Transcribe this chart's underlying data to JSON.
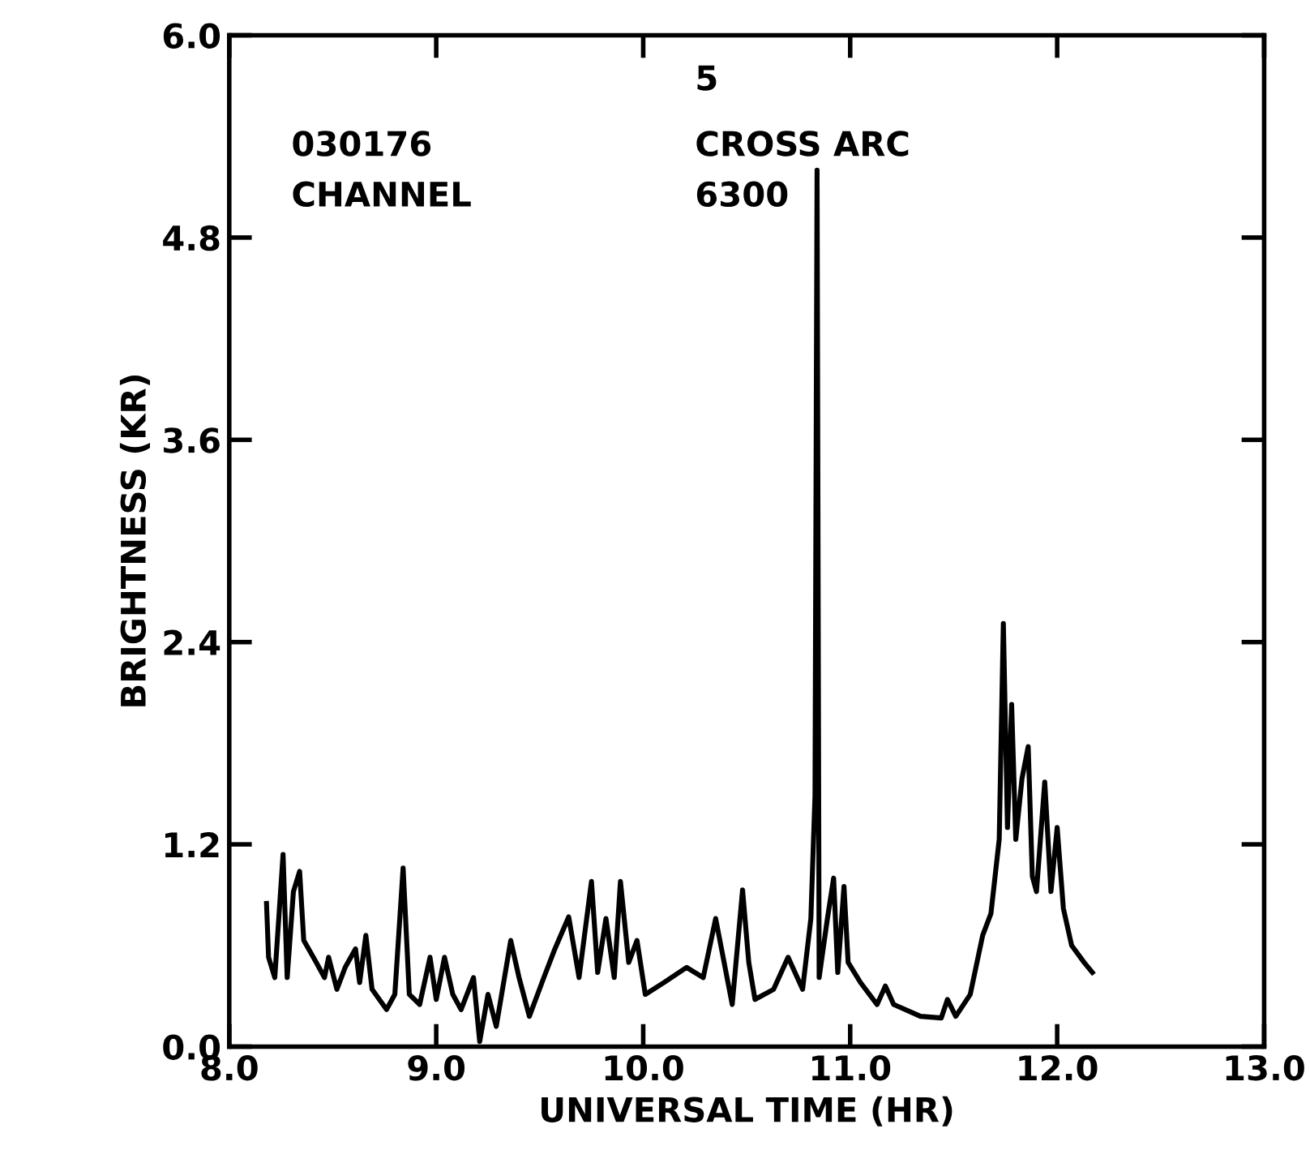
{
  "chart_data": {
    "type": "line",
    "xlabel": "UNIVERSAL TIME (HR)",
    "ylabel": "BRIGHTNESS (KR)",
    "annotations": [
      "5",
      "030176",
      "CROSS ARC",
      "CHANNEL",
      "6300"
    ],
    "xlim": [
      8,
      13
    ],
    "ylim": [
      0,
      6
    ],
    "xticks": [
      {
        "value": 8,
        "label": "8.0"
      },
      {
        "value": 9,
        "label": "9.0"
      },
      {
        "value": 10,
        "label": "10.0"
      },
      {
        "value": 11,
        "label": "11.0"
      },
      {
        "value": 12,
        "label": "12.0"
      },
      {
        "value": 13,
        "label": "13.0"
      }
    ],
    "yticks": [
      {
        "value": 0,
        "label": "0.0"
      },
      {
        "value": 1.2,
        "label": "1.2"
      },
      {
        "value": 2.4,
        "label": "2.4"
      },
      {
        "value": 3.6,
        "label": "3.6"
      },
      {
        "value": 4.8,
        "label": "4.8"
      },
      {
        "value": 6,
        "label": "6.0"
      }
    ],
    "grid": false,
    "legend": false,
    "marker": "none",
    "line_style": "solid",
    "series": [
      {
        "color": "#000000",
        "x": [
          8.18,
          8.19,
          8.22,
          8.26,
          8.28,
          8.31,
          8.34,
          8.36,
          8.42,
          8.46,
          8.48,
          8.52,
          8.56,
          8.61,
          8.63,
          8.66,
          8.69,
          8.76,
          8.8,
          8.84,
          8.87,
          8.92,
          8.97,
          9.0,
          9.04,
          9.08,
          9.12,
          9.18,
          9.21,
          9.25,
          9.29,
          9.36,
          9.4,
          9.45,
          9.52,
          9.57,
          9.64,
          9.69,
          9.75,
          9.78,
          9.82,
          9.86,
          9.89,
          9.93,
          9.97,
          10.01,
          10.1,
          10.21,
          10.29,
          10.35,
          10.43,
          10.48,
          10.51,
          10.54,
          10.63,
          10.7,
          10.77,
          10.81,
          10.83,
          10.84,
          10.85,
          10.89,
          10.92,
          10.94,
          10.97,
          10.99,
          11.05,
          11.13,
          11.17,
          11.21,
          11.34,
          11.44,
          11.47,
          11.51,
          11.58,
          11.64,
          11.68,
          11.72,
          11.74,
          11.76,
          11.78,
          11.8,
          11.83,
          11.86,
          11.88,
          11.9,
          11.94,
          11.97,
          12.0,
          12.03,
          12.07,
          12.13,
          12.17
        ],
        "values": [
          0.85,
          0.53,
          0.41,
          1.14,
          0.41,
          0.92,
          1.04,
          0.63,
          0.5,
          0.41,
          0.53,
          0.34,
          0.47,
          0.58,
          0.38,
          0.66,
          0.34,
          0.22,
          0.31,
          1.06,
          0.31,
          0.25,
          0.53,
          0.28,
          0.53,
          0.31,
          0.22,
          0.41,
          0.03,
          0.31,
          0.12,
          0.63,
          0.41,
          0.18,
          0.41,
          0.57,
          0.77,
          0.41,
          0.98,
          0.44,
          0.76,
          0.41,
          0.98,
          0.5,
          0.63,
          0.31,
          0.38,
          0.47,
          0.41,
          0.76,
          0.25,
          0.93,
          0.5,
          0.28,
          0.34,
          0.53,
          0.34,
          0.76,
          1.49,
          5.2,
          0.41,
          0.76,
          1.0,
          0.44,
          0.95,
          0.5,
          0.38,
          0.25,
          0.36,
          0.25,
          0.18,
          0.17,
          0.28,
          0.18,
          0.31,
          0.66,
          0.79,
          1.23,
          2.51,
          1.3,
          2.03,
          1.23,
          1.59,
          1.78,
          1.01,
          0.92,
          1.57,
          0.92,
          1.3,
          0.82,
          0.6,
          0.5,
          0.44
        ]
      }
    ]
  }
}
